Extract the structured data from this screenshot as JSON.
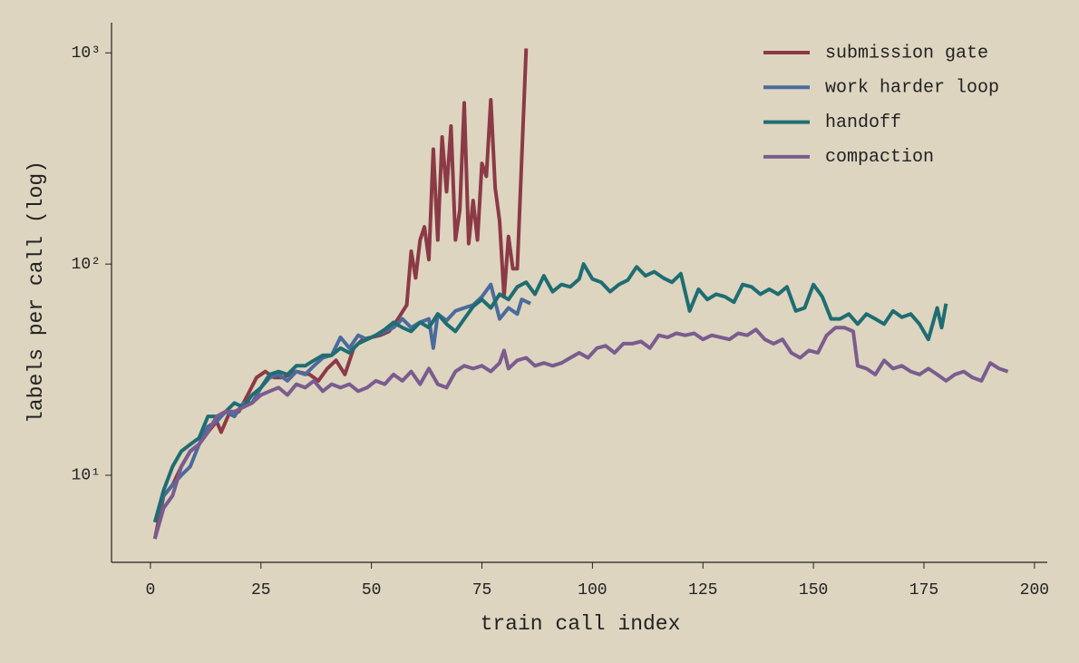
{
  "chart_data": {
    "type": "line",
    "xlabel": "train call index",
    "ylabel": "labels per call (log)",
    "log_y": true,
    "legend": "upper right",
    "xlim": [
      -8.8,
      202.9
    ],
    "xticks": [
      0,
      25,
      50,
      75,
      100,
      125,
      150,
      175,
      200
    ],
    "ylim": [
      3.87,
      1390
    ],
    "yticks": [
      {
        "value": 10,
        "label": "10¹"
      },
      {
        "value": 100,
        "label": "10²"
      },
      {
        "value": 1000,
        "label": "10³"
      }
    ],
    "series": [
      {
        "name": "submission gate",
        "color": "#8b3a46",
        "x": [
          1,
          3,
          5,
          7,
          9,
          11,
          13,
          15,
          16,
          18,
          20,
          22,
          24,
          26,
          28,
          30,
          33,
          36,
          38,
          40,
          42,
          44,
          46,
          48,
          50,
          52,
          54,
          56,
          58,
          59,
          60,
          61,
          62,
          63,
          64,
          65,
          66,
          67,
          68,
          69,
          70,
          71,
          72,
          73,
          74,
          75,
          76,
          77,
          78,
          79,
          80,
          81,
          82,
          83,
          85
        ],
        "values": [
          5,
          8,
          9,
          11,
          13,
          14,
          16,
          18,
          16,
          20,
          20,
          24,
          29,
          31,
          29,
          29,
          31,
          30,
          28,
          32,
          35,
          30,
          40,
          44,
          45,
          46,
          48,
          55,
          64,
          115,
          86,
          130,
          150,
          105,
          350,
          130,
          400,
          220,
          450,
          130,
          180,
          580,
          125,
          200,
          130,
          300,
          260,
          600,
          230,
          160,
          70,
          135,
          95,
          95,
          1050
        ]
      },
      {
        "name": "work harder loop",
        "color": "#4a6b9c",
        "x": [
          1,
          3,
          5,
          7,
          9,
          11,
          13,
          15,
          17,
          19,
          21,
          23,
          25,
          27,
          29,
          31,
          33,
          35,
          37,
          39,
          41,
          43,
          45,
          47,
          49,
          51,
          53,
          55,
          57,
          59,
          61,
          63,
          64,
          65,
          67,
          69,
          71,
          73,
          75,
          77,
          79,
          81,
          83,
          84,
          86
        ],
        "values": [
          6,
          8,
          9,
          10,
          11,
          14,
          17,
          18,
          20,
          19,
          22,
          22,
          26,
          29,
          30,
          28,
          31,
          30,
          33,
          36,
          37,
          45,
          40,
          46,
          44,
          46,
          48,
          50,
          55,
          50,
          53,
          55,
          40,
          58,
          54,
          60,
          62,
          64,
          70,
          80,
          55,
          62,
          58,
          68,
          65
        ]
      },
      {
        "name": "handoff",
        "color": "#1f6d72",
        "x": [
          1,
          3,
          5,
          7,
          9,
          11,
          13,
          15,
          17,
          19,
          21,
          23,
          25,
          27,
          29,
          31,
          33,
          35,
          37,
          39,
          41,
          43,
          45,
          47,
          49,
          51,
          53,
          55,
          57,
          59,
          61,
          63,
          65,
          67,
          69,
          71,
          73,
          75,
          77,
          79,
          81,
          83,
          85,
          87,
          89,
          91,
          93,
          95,
          97,
          98,
          100,
          102,
          104,
          106,
          108,
          110,
          112,
          114,
          116,
          118,
          120,
          122,
          124,
          126,
          128,
          130,
          132,
          134,
          136,
          138,
          140,
          142,
          144,
          146,
          148,
          150,
          152,
          154,
          156,
          158,
          160,
          162,
          164,
          166,
          168,
          170,
          172,
          174,
          176,
          178,
          179,
          180
        ],
        "values": [
          6,
          8.5,
          11,
          13,
          14,
          15,
          19,
          19,
          20,
          22,
          21,
          24,
          26,
          30,
          31,
          30,
          33,
          33,
          35,
          37,
          37,
          40,
          38,
          42,
          44,
          46,
          49,
          53,
          50,
          48,
          53,
          50,
          58,
          52,
          48,
          55,
          63,
          68,
          62,
          72,
          68,
          78,
          82,
          72,
          88,
          74,
          80,
          78,
          85,
          100,
          85,
          82,
          74,
          80,
          84,
          97,
          88,
          92,
          86,
          82,
          90,
          60,
          76,
          68,
          72,
          70,
          66,
          80,
          78,
          72,
          76,
          72,
          78,
          60,
          62,
          80,
          70,
          55,
          55,
          58,
          52,
          58,
          55,
          52,
          60,
          56,
          58,
          52,
          44,
          62,
          50,
          65
        ]
      },
      {
        "name": "compaction",
        "color": "#7a5c8e",
        "x": [
          1,
          3,
          5,
          7,
          9,
          11,
          13,
          15,
          17,
          19,
          21,
          23,
          25,
          27,
          29,
          31,
          33,
          35,
          37,
          39,
          41,
          43,
          45,
          47,
          49,
          51,
          53,
          55,
          57,
          59,
          61,
          63,
          65,
          67,
          69,
          71,
          73,
          75,
          77,
          79,
          80,
          81,
          83,
          85,
          87,
          89,
          91,
          93,
          95,
          97,
          99,
          101,
          103,
          105,
          107,
          109,
          111,
          113,
          115,
          117,
          119,
          121,
          123,
          125,
          127,
          129,
          131,
          133,
          135,
          137,
          139,
          141,
          143,
          145,
          147,
          149,
          151,
          153,
          155,
          157,
          159,
          160,
          162,
          164,
          166,
          168,
          170,
          172,
          174,
          176,
          178,
          180,
          182,
          184,
          186,
          188,
          190,
          192,
          194
        ],
        "values": [
          5,
          7,
          8,
          11,
          13,
          14,
          16,
          19,
          20,
          20,
          21,
          22,
          24,
          25,
          26,
          24,
          27,
          26,
          28,
          25,
          27,
          26,
          27,
          25,
          26,
          28,
          27,
          30,
          28,
          31,
          27,
          32,
          27,
          26,
          31,
          33,
          32,
          33,
          31,
          34,
          39,
          32,
          35,
          36,
          33,
          34,
          33,
          34,
          36,
          38,
          36,
          40,
          41,
          38,
          42,
          42,
          43,
          40,
          46,
          45,
          47,
          46,
          47,
          44,
          46,
          45,
          44,
          47,
          46,
          49,
          44,
          42,
          44,
          38,
          36,
          39,
          38,
          46,
          50,
          50,
          48,
          33,
          32,
          30,
          35,
          32,
          33,
          31,
          30,
          32,
          30,
          28,
          30,
          31,
          29,
          28,
          34,
          32,
          31
        ]
      }
    ]
  }
}
